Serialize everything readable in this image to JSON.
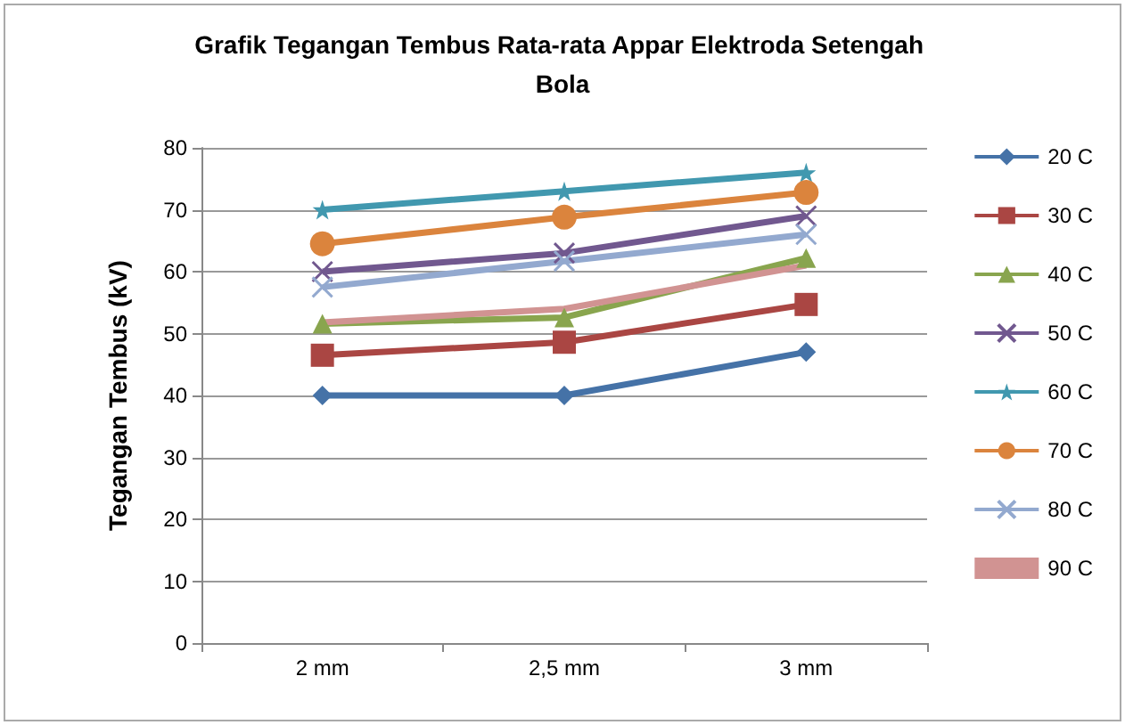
{
  "chart_data": {
    "type": "line",
    "title": "Grafik Tegangan Tembus Rata-rata Appar Elektroda Setengah Bola",
    "ylabel": "Tegangan Tembus (kV)",
    "categories": [
      "2 mm",
      "2,5 mm",
      "3 mm"
    ],
    "series": [
      {
        "name": "20 C",
        "color": "#4572a7",
        "marker": "diamond",
        "values": [
          40,
          40,
          47
        ]
      },
      {
        "name": "30 C",
        "color": "#aa4643",
        "marker": "square",
        "values": [
          46.5,
          48.6,
          54.7
        ]
      },
      {
        "name": "40 C",
        "color": "#89a54e",
        "marker": "triangle",
        "values": [
          51.6,
          52.6,
          62.2
        ]
      },
      {
        "name": "50 C",
        "color": "#71588f",
        "marker": "cross",
        "values": [
          60,
          63,
          69
        ]
      },
      {
        "name": "60 C",
        "color": "#4198af",
        "marker": "star",
        "values": [
          70,
          73,
          76
        ]
      },
      {
        "name": "70 C",
        "color": "#db843d",
        "marker": "circle",
        "values": [
          64.5,
          68.8,
          72.8
        ]
      },
      {
        "name": "80 C",
        "color": "#93a9cf",
        "marker": "cross",
        "values": [
          57.5,
          61.7,
          66
        ]
      },
      {
        "name": "90 C",
        "color": "#d19392",
        "marker": "none",
        "values": [
          51.8,
          54,
          61
        ]
      }
    ],
    "ylim": [
      0,
      80
    ],
    "yticks": [
      0,
      10,
      20,
      30,
      40,
      50,
      60,
      70,
      80
    ],
    "grid": "y",
    "legend": "right"
  }
}
